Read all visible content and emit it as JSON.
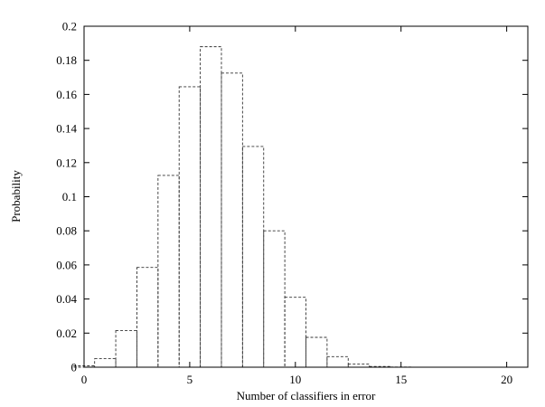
{
  "chart_data": {
    "type": "bar",
    "xlabel": "Number of classifiers in error",
    "ylabel": "Probability",
    "xlim": [
      0,
      21
    ],
    "ylim": [
      0,
      0.2
    ],
    "xticks": [
      0,
      5,
      10,
      15,
      20
    ],
    "yticks": [
      0,
      0.02,
      0.04,
      0.06,
      0.08,
      0.1,
      0.12,
      0.14,
      0.16,
      0.18,
      0.2
    ],
    "ytick_labels": [
      "0",
      "0.02",
      "0.04",
      "0.06",
      "0.08",
      "0.1",
      "0.12",
      "0.14",
      "0.16",
      "0.18",
      "0.2"
    ],
    "bar_style": "dashed outline",
    "grid": false,
    "x": [
      0,
      1,
      2,
      3,
      4,
      5,
      6,
      7,
      8,
      9,
      10,
      11,
      12,
      13,
      14,
      15,
      16,
      17,
      18,
      19,
      20
    ],
    "values": [
      0.0008,
      0.005,
      0.0215,
      0.0585,
      0.1125,
      0.1645,
      0.188,
      0.1725,
      0.1295,
      0.08,
      0.041,
      0.0175,
      0.0062,
      0.0018,
      0.0004,
      0.0001,
      0,
      0,
      0,
      0,
      0
    ]
  }
}
